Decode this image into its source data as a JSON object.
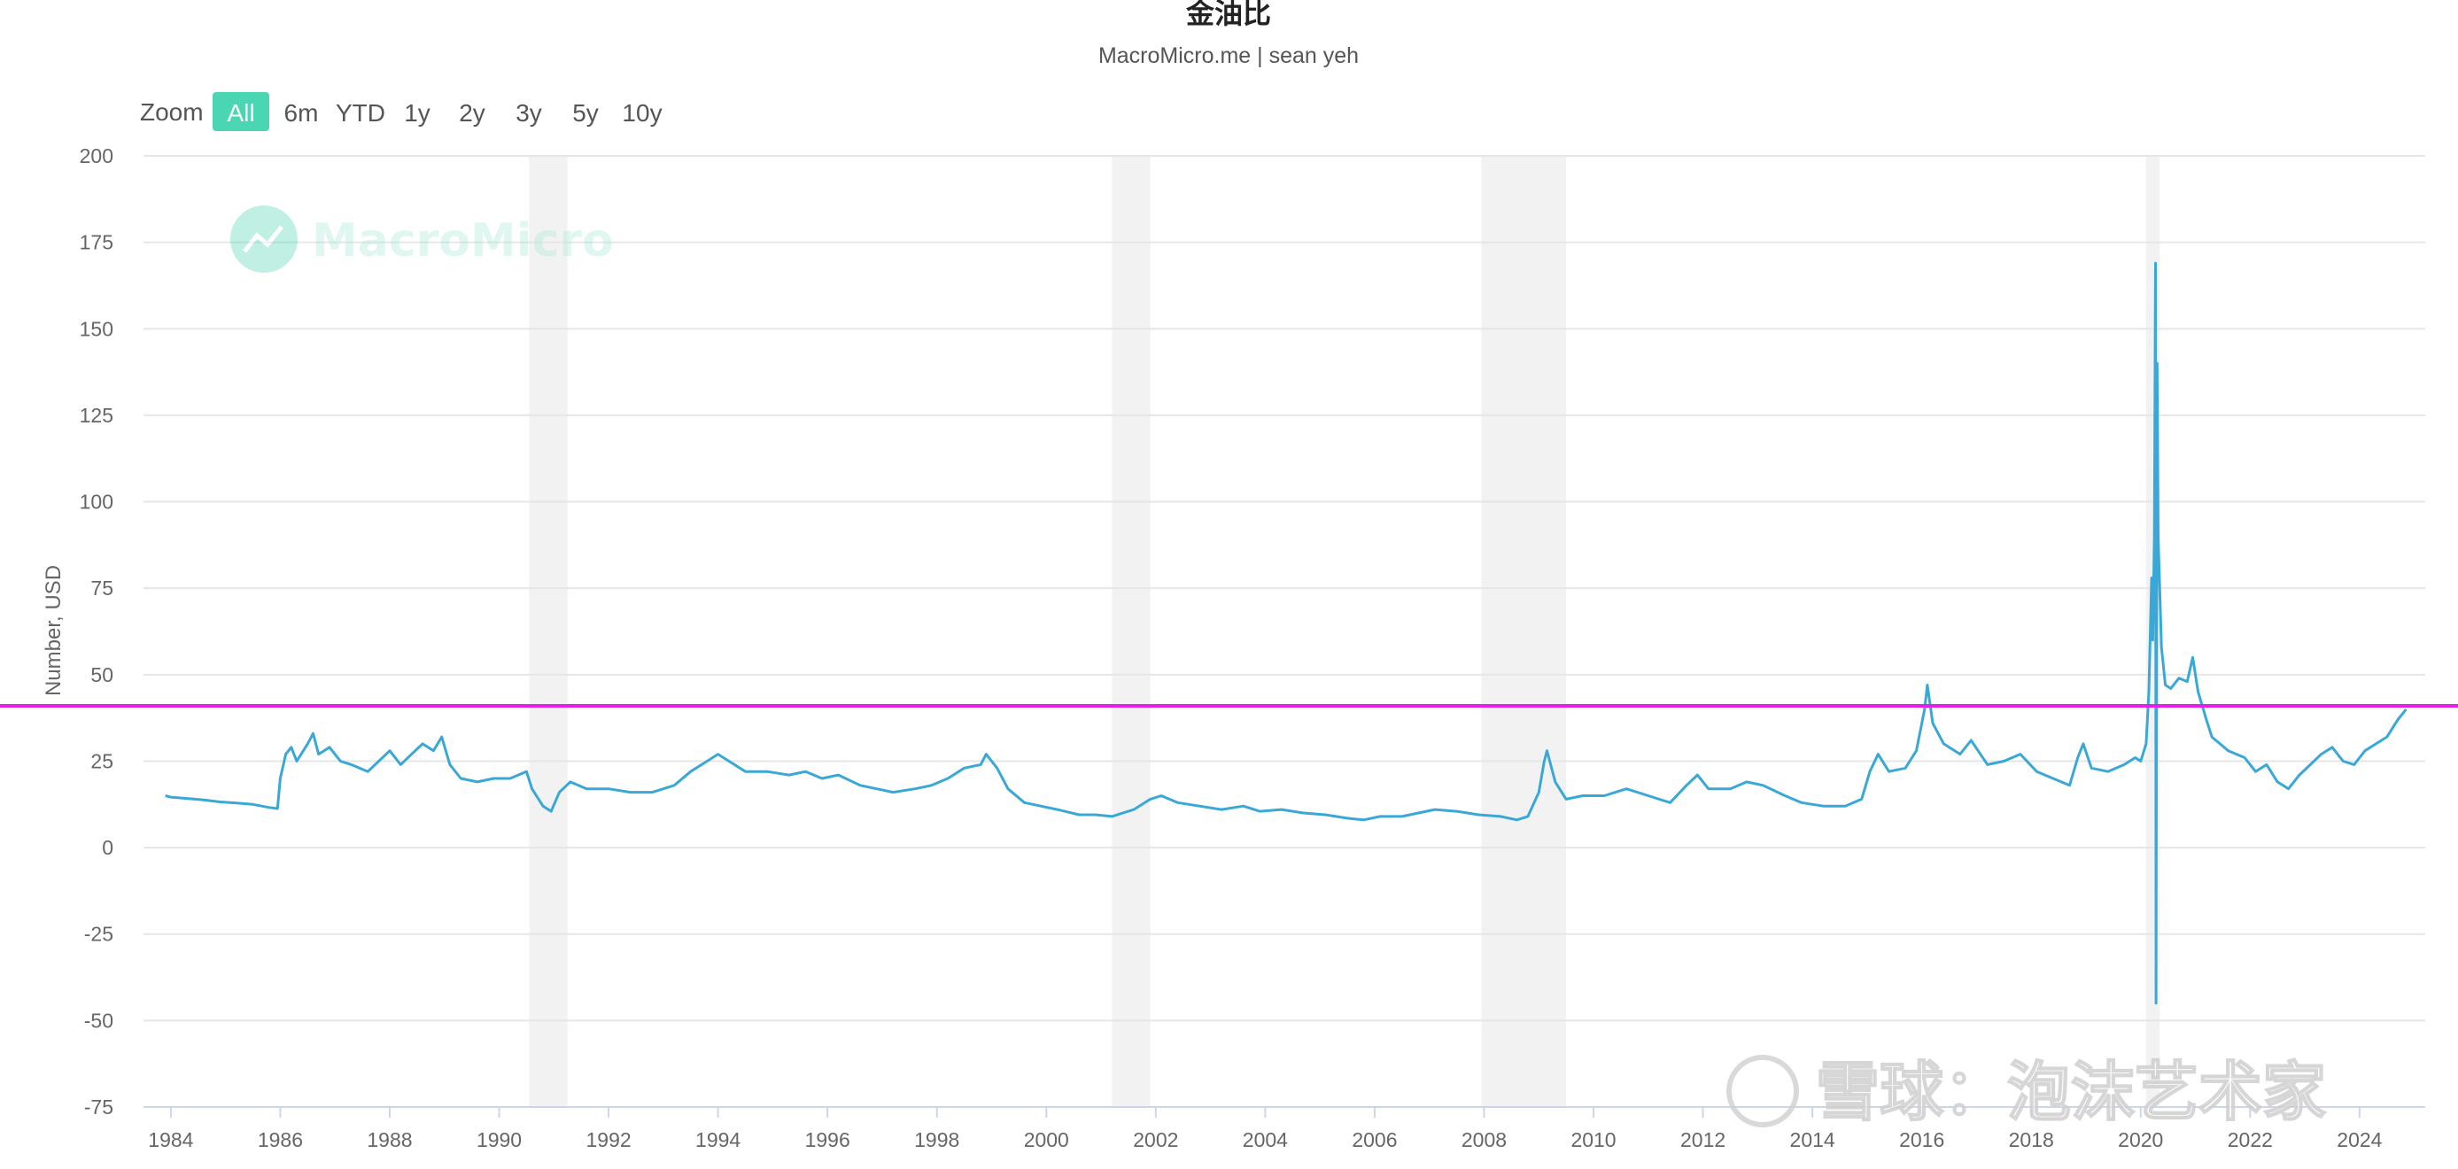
{
  "chart_data": {
    "type": "line",
    "title": "金油比",
    "subtitle": "MacroMicro.me | sean yeh",
    "xlabel": "",
    "ylabel": "Number, USD",
    "xlim": [
      1983.5,
      2025.2
    ],
    "ylim": [
      -75,
      200
    ],
    "y_ticks": [
      "200",
      "175",
      "150",
      "125",
      "100",
      "75",
      "50",
      "25",
      "0",
      "-25",
      "-50",
      "-75"
    ],
    "x_ticks": [
      "1984",
      "1986",
      "1988",
      "1990",
      "1992",
      "1994",
      "1996",
      "1998",
      "2000",
      "2002",
      "2004",
      "2006",
      "2008",
      "2010",
      "2012",
      "2014",
      "2016",
      "2018",
      "2020",
      "2022",
      "2024"
    ],
    "grid": true,
    "legend": "none",
    "reference_line": {
      "y": 41,
      "color": "#e61ee6"
    },
    "shaded_periods": [
      {
        "start": 1990.55,
        "end": 1991.25
      },
      {
        "start": 2001.2,
        "end": 2001.9
      },
      {
        "start": 2007.95,
        "end": 2009.5
      },
      {
        "start": 2020.1,
        "end": 2020.35
      }
    ],
    "series": [
      {
        "color": "#3aa8d6",
        "points": [
          [
            1983.9,
            15
          ],
          [
            1984.0,
            14.6
          ],
          [
            1984.3,
            14.2
          ],
          [
            1984.6,
            13.8
          ],
          [
            1984.9,
            13.2
          ],
          [
            1985.2,
            12.9
          ],
          [
            1985.5,
            12.5
          ],
          [
            1985.8,
            11.6
          ],
          [
            1985.95,
            11.3
          ],
          [
            1986.0,
            20
          ],
          [
            1986.1,
            27
          ],
          [
            1986.2,
            29
          ],
          [
            1986.3,
            25
          ],
          [
            1986.5,
            30
          ],
          [
            1986.6,
            33
          ],
          [
            1986.7,
            27
          ],
          [
            1986.9,
            29
          ],
          [
            1987.1,
            25
          ],
          [
            1987.3,
            24
          ],
          [
            1987.6,
            22
          ],
          [
            1987.8,
            25
          ],
          [
            1988.0,
            28
          ],
          [
            1988.2,
            24
          ],
          [
            1988.4,
            27
          ],
          [
            1988.6,
            30
          ],
          [
            1988.8,
            28
          ],
          [
            1988.95,
            32
          ],
          [
            1989.1,
            24
          ],
          [
            1989.3,
            20
          ],
          [
            1989.6,
            19
          ],
          [
            1989.9,
            20
          ],
          [
            1990.2,
            20
          ],
          [
            1990.5,
            22
          ],
          [
            1990.6,
            17
          ],
          [
            1990.8,
            12
          ],
          [
            1990.95,
            10.5
          ],
          [
            1991.1,
            16
          ],
          [
            1991.3,
            19
          ],
          [
            1991.6,
            17
          ],
          [
            1992.0,
            17
          ],
          [
            1992.4,
            16
          ],
          [
            1992.8,
            16
          ],
          [
            1993.2,
            18
          ],
          [
            1993.5,
            22
          ],
          [
            1993.8,
            25
          ],
          [
            1994.0,
            27
          ],
          [
            1994.2,
            25
          ],
          [
            1994.5,
            22
          ],
          [
            1994.9,
            22
          ],
          [
            1995.3,
            21
          ],
          [
            1995.6,
            22
          ],
          [
            1995.9,
            20
          ],
          [
            1996.2,
            21
          ],
          [
            1996.6,
            18
          ],
          [
            1996.9,
            17
          ],
          [
            1997.2,
            16
          ],
          [
            1997.6,
            17
          ],
          [
            1997.9,
            18
          ],
          [
            1998.2,
            20
          ],
          [
            1998.5,
            23
          ],
          [
            1998.8,
            24
          ],
          [
            1998.9,
            27
          ],
          [
            1999.1,
            23
          ],
          [
            1999.3,
            17
          ],
          [
            1999.6,
            13
          ],
          [
            1999.9,
            12
          ],
          [
            2000.2,
            11
          ],
          [
            2000.6,
            9.5
          ],
          [
            2000.9,
            9.5
          ],
          [
            2001.2,
            9
          ],
          [
            2001.6,
            11
          ],
          [
            2001.9,
            14
          ],
          [
            2002.1,
            15
          ],
          [
            2002.4,
            13
          ],
          [
            2002.8,
            12
          ],
          [
            2003.2,
            11
          ],
          [
            2003.6,
            12
          ],
          [
            2003.9,
            10.5
          ],
          [
            2004.3,
            11
          ],
          [
            2004.7,
            10
          ],
          [
            2005.1,
            9.5
          ],
          [
            2005.5,
            8.5
          ],
          [
            2005.8,
            8
          ],
          [
            2006.1,
            9
          ],
          [
            2006.5,
            9
          ],
          [
            2006.8,
            10
          ],
          [
            2007.1,
            11
          ],
          [
            2007.5,
            10.5
          ],
          [
            2007.9,
            9.5
          ],
          [
            2008.3,
            9
          ],
          [
            2008.6,
            8
          ],
          [
            2008.8,
            9
          ],
          [
            2009.0,
            16
          ],
          [
            2009.1,
            25
          ],
          [
            2009.15,
            28
          ],
          [
            2009.3,
            19
          ],
          [
            2009.5,
            14
          ],
          [
            2009.8,
            15
          ],
          [
            2010.2,
            15
          ],
          [
            2010.6,
            17
          ],
          [
            2011.0,
            15
          ],
          [
            2011.4,
            13
          ],
          [
            2011.7,
            18
          ],
          [
            2011.9,
            21
          ],
          [
            2012.1,
            17
          ],
          [
            2012.5,
            17
          ],
          [
            2012.8,
            19
          ],
          [
            2013.1,
            18
          ],
          [
            2013.5,
            15
          ],
          [
            2013.8,
            13
          ],
          [
            2014.2,
            12
          ],
          [
            2014.6,
            12
          ],
          [
            2014.9,
            14
          ],
          [
            2015.05,
            22
          ],
          [
            2015.2,
            27
          ],
          [
            2015.4,
            22
          ],
          [
            2015.7,
            23
          ],
          [
            2015.9,
            28
          ],
          [
            2016.05,
            40
          ],
          [
            2016.1,
            47
          ],
          [
            2016.2,
            36
          ],
          [
            2016.4,
            30
          ],
          [
            2016.7,
            27
          ],
          [
            2016.9,
            31
          ],
          [
            2017.2,
            24
          ],
          [
            2017.5,
            25
          ],
          [
            2017.8,
            27
          ],
          [
            2018.1,
            22
          ],
          [
            2018.4,
            20
          ],
          [
            2018.7,
            18
          ],
          [
            2018.85,
            26
          ],
          [
            2018.95,
            30
          ],
          [
            2019.1,
            23
          ],
          [
            2019.4,
            22
          ],
          [
            2019.7,
            24
          ],
          [
            2019.9,
            26
          ],
          [
            2020.0,
            25
          ],
          [
            2020.1,
            30
          ],
          [
            2020.15,
            45
          ],
          [
            2020.2,
            78
          ],
          [
            2020.22,
            60
          ],
          [
            2020.25,
            90
          ],
          [
            2020.27,
            169
          ],
          [
            2020.28,
            -45
          ],
          [
            2020.3,
            140
          ],
          [
            2020.32,
            90
          ],
          [
            2020.38,
            58
          ],
          [
            2020.45,
            47
          ],
          [
            2020.55,
            46
          ],
          [
            2020.7,
            49
          ],
          [
            2020.85,
            48
          ],
          [
            2020.95,
            55
          ],
          [
            2021.05,
            45
          ],
          [
            2021.2,
            37
          ],
          [
            2021.3,
            32
          ],
          [
            2021.6,
            28
          ],
          [
            2021.9,
            26
          ],
          [
            2022.1,
            22
          ],
          [
            2022.3,
            24
          ],
          [
            2022.5,
            19
          ],
          [
            2022.7,
            17
          ],
          [
            2022.9,
            21
          ],
          [
            2023.1,
            24
          ],
          [
            2023.3,
            27
          ],
          [
            2023.5,
            29
          ],
          [
            2023.7,
            25
          ],
          [
            2023.9,
            24
          ],
          [
            2024.1,
            28
          ],
          [
            2024.3,
            30
          ],
          [
            2024.5,
            32
          ],
          [
            2024.7,
            37
          ],
          [
            2024.85,
            40
          ]
        ]
      }
    ]
  },
  "zoom": {
    "label": "Zoom",
    "buttons": [
      {
        "label": "All",
        "active": true
      },
      {
        "label": "6m",
        "active": false
      },
      {
        "label": "YTD",
        "active": false
      },
      {
        "label": "1y",
        "active": false
      },
      {
        "label": "2y",
        "active": false
      },
      {
        "label": "3y",
        "active": false
      },
      {
        "label": "5y",
        "active": false
      },
      {
        "label": "10y",
        "active": false
      }
    ]
  },
  "watermark": {
    "brand": "MacroMicro",
    "brand_color": "#4ad6b2"
  },
  "overlay_watermark": {
    "text": "雪球：泡沫艺术家"
  }
}
